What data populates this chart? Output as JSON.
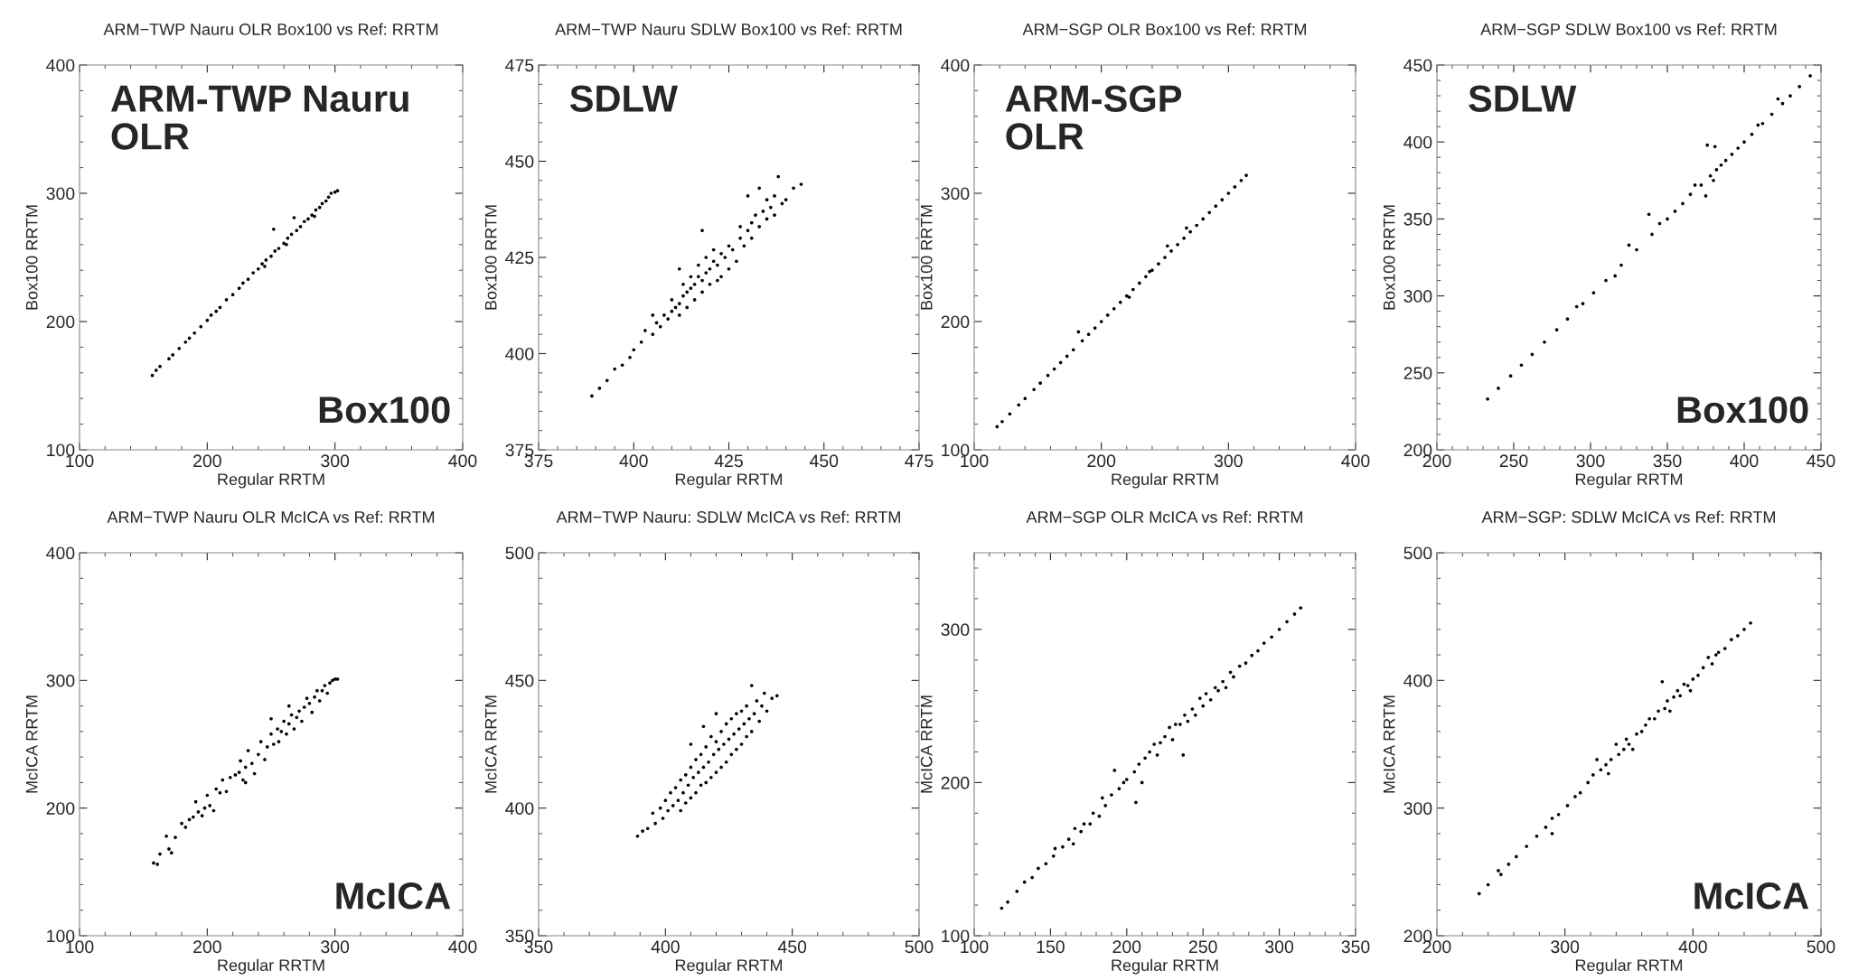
{
  "chart_data": [
    {
      "type": "scatter",
      "title": "ARM−TWP Nauru OLR Box100 vs Ref: RRTM",
      "xlabel": "Regular RRTM",
      "ylabel": "Box100 RRTM",
      "annotations": [
        "ARM-TWP Nauru\nOLR",
        "Box100"
      ],
      "xlim": [
        100,
        400
      ],
      "ylim": [
        100,
        400
      ],
      "xticks": [
        100,
        200,
        300,
        400
      ],
      "yticks": [
        100,
        200,
        300,
        400
      ],
      "marker": "circle",
      "series": [
        {
          "color": "#000000",
          "x": [
            157,
            160,
            163,
            170,
            173,
            178,
            183,
            186,
            190,
            195,
            200,
            203,
            207,
            210,
            215,
            220,
            225,
            228,
            232,
            236,
            240,
            243,
            246,
            250,
            252,
            253,
            256,
            260,
            263,
            266,
            268,
            270,
            273,
            276,
            279,
            282,
            285,
            288,
            290,
            293,
            295,
            297,
            300,
            302,
            262,
            284,
            245
          ],
          "values": [
            158,
            162,
            165,
            171,
            174,
            179,
            184,
            187,
            191,
            196,
            201,
            205,
            208,
            211,
            217,
            221,
            226,
            230,
            233,
            238,
            241,
            245,
            248,
            251,
            272,
            255,
            257,
            261,
            265,
            268,
            281,
            271,
            274,
            278,
            280,
            283,
            287,
            289,
            292,
            294,
            297,
            300,
            301,
            302,
            260,
            282,
            243
          ]
        }
      ]
    },
    {
      "type": "scatter",
      "title": "ARM−TWP Nauru SDLW Box100 vs Ref: RRTM",
      "xlabel": "Regular RRTM",
      "ylabel": "Box100 RRTM",
      "annotations": [
        "SDLW"
      ],
      "xlim": [
        375,
        475
      ],
      "ylim": [
        375,
        475
      ],
      "xticks": [
        375,
        400,
        425,
        450,
        475
      ],
      "yticks": [
        375,
        400,
        425,
        450,
        475
      ],
      "marker": "circle",
      "series": [
        {
          "color": "#000000",
          "x": [
            389,
            391,
            393,
            395,
            397,
            399,
            400,
            402,
            403,
            405,
            406,
            407,
            408,
            409,
            410,
            410,
            411,
            412,
            412,
            413,
            413,
            414,
            414,
            415,
            415,
            416,
            416,
            417,
            417,
            418,
            418,
            419,
            419,
            420,
            420,
            421,
            421,
            422,
            422,
            423,
            423,
            424,
            425,
            425,
            426,
            427,
            428,
            428,
            429,
            430,
            431,
            431,
            432,
            433,
            434,
            435,
            435,
            436,
            437,
            437,
            438,
            439,
            440,
            442,
            444,
            418,
            412,
            405,
            430,
            433
          ],
          "values": [
            389,
            391,
            393,
            396,
            397,
            399,
            401,
            403,
            406,
            405,
            408,
            407,
            410,
            409,
            411,
            414,
            412,
            413,
            410,
            415,
            418,
            416,
            412,
            417,
            420,
            418,
            414,
            420,
            423,
            419,
            416,
            421,
            425,
            422,
            418,
            424,
            427,
            423,
            419,
            426,
            420,
            425,
            428,
            422,
            427,
            424,
            430,
            433,
            428,
            432,
            434,
            430,
            436,
            433,
            437,
            440,
            435,
            438,
            441,
            436,
            446,
            439,
            440,
            443,
            444,
            432,
            422,
            410,
            441,
            443
          ]
        }
      ]
    },
    {
      "type": "scatter",
      "title": "ARM−SGP OLR Box100 vs Ref: RRTM",
      "xlabel": "Regular RRTM",
      "ylabel": "Box100 RRTM",
      "annotations": [
        "ARM-SGP\nOLR"
      ],
      "xlim": [
        100,
        400
      ],
      "ylim": [
        100,
        400
      ],
      "xticks": [
        100,
        200,
        300,
        400
      ],
      "yticks": [
        100,
        200,
        300,
        400
      ],
      "marker": "circle",
      "series": [
        {
          "color": "#000000",
          "x": [
            118,
            122,
            128,
            135,
            140,
            147,
            152,
            158,
            163,
            168,
            173,
            178,
            182,
            185,
            190,
            195,
            200,
            205,
            210,
            215,
            220,
            222,
            225,
            230,
            235,
            238,
            240,
            245,
            250,
            252,
            255,
            260,
            265,
            267,
            270,
            275,
            280,
            285,
            290,
            295,
            300,
            305,
            310,
            314
          ],
          "values": [
            118,
            122,
            128,
            135,
            140,
            147,
            152,
            158,
            163,
            168,
            173,
            178,
            192,
            185,
            190,
            195,
            200,
            205,
            210,
            215,
            220,
            219,
            225,
            230,
            235,
            239,
            240,
            245,
            250,
            259,
            255,
            260,
            265,
            273,
            270,
            275,
            280,
            285,
            290,
            295,
            300,
            305,
            310,
            314
          ]
        }
      ]
    },
    {
      "type": "scatter",
      "title": "ARM−SGP SDLW Box100 vs Ref: RRTM",
      "xlabel": "Regular RRTM",
      "ylabel": "Box100 RRTM",
      "annotations": [
        "SDLW",
        "Box100"
      ],
      "xlim": [
        200,
        450
      ],
      "ylim": [
        200,
        450
      ],
      "xticks": [
        200,
        250,
        300,
        350,
        400,
        450
      ],
      "yticks": [
        200,
        250,
        300,
        350,
        400,
        450
      ],
      "marker": "circle",
      "series": [
        {
          "color": "#000000",
          "x": [
            233,
            240,
            248,
            255,
            262,
            270,
            278,
            285,
            291,
            295,
            302,
            310,
            316,
            320,
            325,
            330,
            338,
            340,
            345,
            350,
            355,
            360,
            365,
            368,
            372,
            375,
            376,
            378,
            380,
            381,
            382,
            385,
            388,
            392,
            396,
            400,
            405,
            409,
            412,
            418,
            422,
            425,
            430,
            436,
            443
          ],
          "values": [
            233,
            240,
            248,
            255,
            262,
            270,
            278,
            285,
            293,
            295,
            302,
            310,
            313,
            320,
            333,
            330,
            353,
            340,
            347,
            350,
            355,
            360,
            366,
            372,
            372,
            365,
            398,
            378,
            375,
            397,
            382,
            385,
            388,
            392,
            396,
            400,
            405,
            411,
            412,
            418,
            428,
            425,
            430,
            436,
            443
          ]
        }
      ]
    },
    {
      "type": "scatter",
      "title": "ARM−TWP Nauru OLR McICA vs Ref: RRTM",
      "xlabel": "Regular RRTM",
      "ylabel": "McICA RRTM",
      "annotations": [
        "McICA"
      ],
      "xlim": [
        100,
        400
      ],
      "ylim": [
        100,
        400
      ],
      "xticks": [
        100,
        200,
        300,
        400
      ],
      "yticks": [
        100,
        200,
        300,
        400
      ],
      "marker": "circle",
      "series": [
        {
          "color": "#000000",
          "x": [
            158,
            161,
            163,
            168,
            170,
            172,
            175,
            180,
            183,
            186,
            189,
            191,
            193,
            196,
            198,
            200,
            202,
            205,
            207,
            210,
            212,
            215,
            218,
            222,
            225,
            226,
            228,
            230,
            232,
            235,
            237,
            240,
            242,
            245,
            247,
            250,
            252,
            255,
            256,
            258,
            260,
            262,
            264,
            266,
            268,
            270,
            272,
            274,
            276,
            278,
            280,
            282,
            284,
            286,
            288,
            290,
            292,
            294,
            296,
            298,
            300,
            302,
            250,
            230,
            264
          ],
          "values": [
            157,
            156,
            164,
            178,
            168,
            165,
            177,
            188,
            185,
            191,
            193,
            205,
            197,
            194,
            200,
            210,
            202,
            198,
            215,
            212,
            222,
            213,
            224,
            226,
            228,
            237,
            222,
            232,
            245,
            235,
            227,
            242,
            252,
            238,
            248,
            258,
            250,
            262,
            252,
            260,
            268,
            258,
            266,
            273,
            262,
            271,
            276,
            268,
            279,
            286,
            282,
            275,
            287,
            292,
            284,
            292,
            296,
            290,
            298,
            300,
            301,
            301,
            270,
            220,
            280
          ]
        }
      ]
    },
    {
      "type": "scatter",
      "title": "ARM−TWP Nauru: SDLW McICA vs Ref: RRTM",
      "xlabel": "Regular RRTM",
      "ylabel": "McICA RRTM",
      "xlim": [
        350,
        500
      ],
      "ylim": [
        350,
        500
      ],
      "xticks": [
        350,
        400,
        450,
        500
      ],
      "yticks": [
        350,
        400,
        450,
        500
      ],
      "marker": "circle",
      "series": [
        {
          "color": "#000000",
          "x": [
            389,
            391,
            393,
            395,
            396,
            398,
            399,
            400,
            401,
            402,
            403,
            404,
            405,
            406,
            406,
            407,
            408,
            408,
            409,
            410,
            410,
            411,
            412,
            412,
            413,
            414,
            414,
            415,
            416,
            416,
            417,
            418,
            418,
            419,
            420,
            420,
            421,
            422,
            422,
            423,
            424,
            424,
            425,
            426,
            426,
            427,
            428,
            428,
            429,
            430,
            430,
            431,
            432,
            432,
            433,
            434,
            434,
            435,
            436,
            437,
            438,
            439,
            440,
            442,
            444,
            415,
            410,
            420
          ],
          "values": [
            389,
            391,
            392,
            398,
            394,
            400,
            396,
            403,
            399,
            406,
            401,
            408,
            403,
            411,
            399,
            406,
            413,
            402,
            409,
            416,
            404,
            412,
            419,
            406,
            414,
            421,
            409,
            416,
            424,
            410,
            418,
            428,
            412,
            421,
            426,
            414,
            423,
            430,
            416,
            425,
            433,
            418,
            427,
            435,
            421,
            429,
            437,
            423,
            431,
            438,
            425,
            433,
            440,
            428,
            435,
            448,
            430,
            437,
            442,
            434,
            440,
            445,
            438,
            443,
            444,
            432,
            425,
            437
          ]
        }
      ]
    },
    {
      "type": "scatter",
      "title": "ARM−SGP OLR McICA vs Ref: RRTM",
      "xlabel": "Regular RRTM",
      "ylabel": "McICA RRTM",
      "xlim": [
        100,
        350
      ],
      "ylim": [
        100,
        350
      ],
      "xticks": [
        100,
        150,
        200,
        250,
        300,
        350
      ],
      "yticks": [
        100,
        200,
        300
      ],
      "marker": "circle",
      "series": [
        {
          "color": "#000000",
          "x": [
            118,
            122,
            128,
            133,
            138,
            142,
            147,
            152,
            153,
            158,
            162,
            165,
            166,
            170,
            172,
            176,
            178,
            182,
            184,
            186,
            190,
            192,
            195,
            198,
            200,
            205,
            206,
            208,
            210,
            212,
            215,
            218,
            220,
            222,
            225,
            228,
            230,
            232,
            235,
            237,
            238,
            240,
            243,
            245,
            248,
            250,
            252,
            255,
            258,
            260,
            263,
            265,
            268,
            270,
            274,
            278,
            282,
            286,
            290,
            295,
            300,
            305,
            310,
            314
          ],
          "values": [
            118,
            122,
            129,
            135,
            138,
            144,
            147,
            152,
            157,
            158,
            163,
            160,
            170,
            168,
            173,
            173,
            180,
            178,
            190,
            185,
            192,
            208,
            196,
            200,
            202,
            207,
            187,
            212,
            200,
            216,
            220,
            225,
            218,
            226,
            230,
            236,
            228,
            238,
            238,
            218,
            244,
            240,
            248,
            244,
            255,
            250,
            258,
            254,
            262,
            260,
            266,
            262,
            272,
            269,
            276,
            278,
            283,
            286,
            291,
            295,
            300,
            305,
            310,
            314
          ]
        }
      ]
    },
    {
      "type": "scatter",
      "title": "ARM−SGP: SDLW McICA vs Ref: RRTM",
      "xlabel": "Regular RRTM",
      "ylabel": "McICA RRTM",
      "annotations": [
        "McICA"
      ],
      "xlim": [
        200,
        500
      ],
      "ylim": [
        200,
        500
      ],
      "xticks": [
        200,
        300,
        400,
        500
      ],
      "yticks": [
        200,
        300,
        400,
        500
      ],
      "marker": "circle",
      "series": [
        {
          "color": "#000000",
          "x": [
            233,
            240,
            248,
            250,
            256,
            262,
            270,
            278,
            285,
            290,
            290,
            295,
            302,
            308,
            312,
            318,
            322,
            325,
            328,
            332,
            334,
            336,
            340,
            342,
            346,
            348,
            350,
            353,
            356,
            360,
            363,
            366,
            370,
            373,
            376,
            378,
            380,
            382,
            385,
            388,
            390,
            393,
            396,
            398,
            400,
            404,
            408,
            412,
            415,
            418,
            420,
            425,
            430,
            435,
            440,
            445
          ],
          "values": [
            233,
            240,
            251,
            248,
            256,
            262,
            270,
            278,
            285,
            292,
            280,
            295,
            302,
            309,
            312,
            320,
            326,
            338,
            330,
            334,
            327,
            338,
            350,
            342,
            346,
            354,
            350,
            346,
            358,
            360,
            365,
            370,
            370,
            376,
            399,
            378,
            384,
            376,
            387,
            392,
            388,
            397,
            396,
            392,
            401,
            404,
            410,
            418,
            413,
            420,
            422,
            425,
            432,
            435,
            440,
            445
          ]
        }
      ]
    }
  ]
}
